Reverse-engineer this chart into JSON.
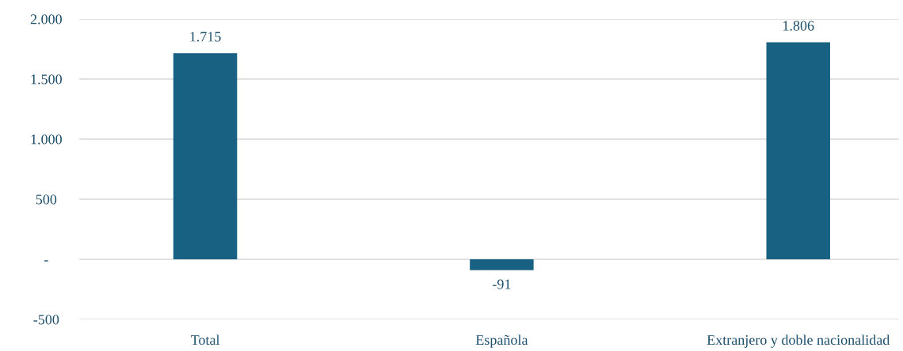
{
  "chart_data": {
    "type": "bar",
    "categories": [
      "Total",
      "Española",
      "Extranjero y doble nacionalidad"
    ],
    "values": [
      1715,
      -91,
      1806
    ],
    "value_labels": [
      "1.715",
      "-91",
      "1.806"
    ],
    "color": "#186183",
    "ylim": [
      -500,
      2000
    ],
    "yticks": [
      -500,
      {
        "value": 0,
        "label": "-"
      },
      500,
      {
        "value": 1000,
        "label": "1.000"
      },
      {
        "value": 1500,
        "label": "1.500"
      },
      {
        "value": 2000,
        "label": "2.000"
      }
    ],
    "grid": "y",
    "legend": false
  }
}
